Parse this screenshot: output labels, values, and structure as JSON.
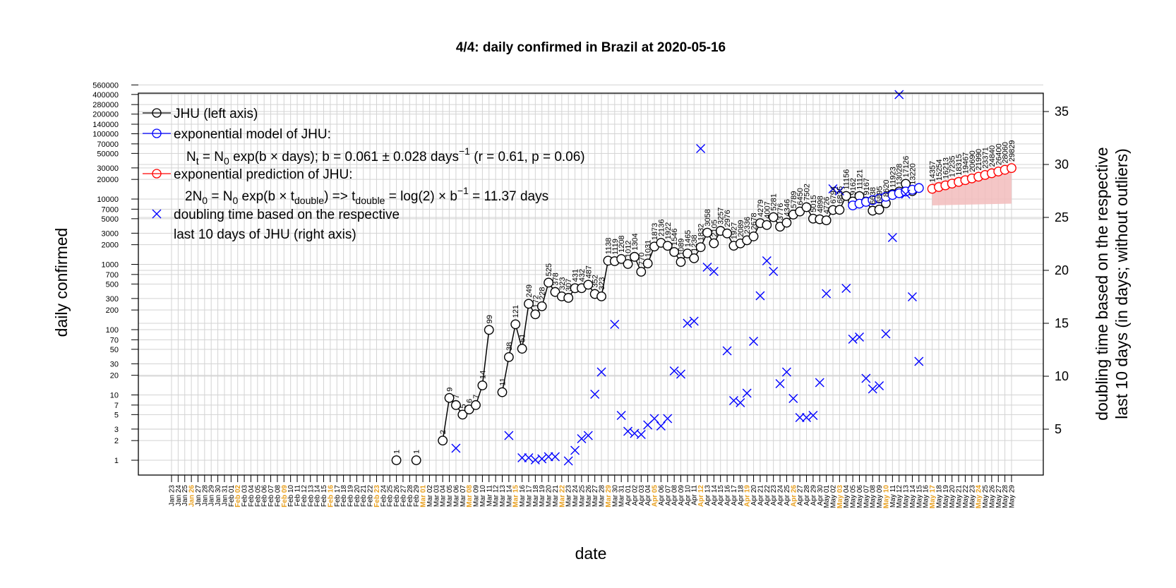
{
  "chart_data": {
    "type": "line",
    "title": "4/4: daily confirmed in Brazil at 2020-05-16",
    "xlabel": "date",
    "ylabel": "daily confirmed",
    "ylabel_right_line1": "doubling time based on the respective",
    "ylabel_right_line2": "last 10 days (in days; without outliers)",
    "x_start": "2020-01-23",
    "x_end": "2020-05-29",
    "y_scale": "log",
    "yticks_left": [
      1,
      2,
      3,
      5,
      7,
      10,
      20,
      30,
      50,
      70,
      100,
      200,
      300,
      500,
      700,
      1000,
      2000,
      3000,
      5000,
      7000,
      10000,
      20000,
      30000,
      50000,
      70000,
      100000,
      140000,
      200000,
      280000,
      400000,
      560000
    ],
    "ylim_right": [
      2.5,
      37.5
    ],
    "yticks_right": [
      5,
      10,
      15,
      20,
      25,
      30,
      35
    ],
    "grid": true,
    "legend_position": "top-left",
    "legend": {
      "jhu": "JHU (left axis)",
      "model": "exponential model of JHU:",
      "formula1_pre": "N",
      "formula1_sub1": "t",
      "formula1_mid": " = N",
      "formula1_sub2": "0",
      "formula1_post": " exp(b × days); b = 0.061 ± 0.028 days",
      "formula1_sup": "−1",
      "formula1_end": " (r = 0.61, p = 0.06)",
      "prediction": "exponential prediction of JHU:",
      "formula2_a": "2N",
      "formula2_sub1": "0",
      "formula2_b": " = N",
      "formula2_sub2": "0",
      "formula2_c": " exp(b × t",
      "formula2_sub3": "double",
      "formula2_d": ") => t",
      "formula2_sub4": "double",
      "formula2_e": " = log(2) × b",
      "formula2_sup": "−1",
      "formula2_f": " = 11.37 days",
      "doubling1": "doubling time based on the respective",
      "doubling2": "last 10 days of JHU (right axis)"
    },
    "colors": {
      "jhu": "#000000",
      "model": "#0000ff",
      "prediction": "#ff0000",
      "doubling": "#0000ff",
      "band": "#f2bcbc",
      "sunday_label": "#e8a020",
      "grid": "#d3d3d3"
    },
    "series": [
      {
        "name": "JHU (left axis)",
        "points": [
          [
            "2020-02-26",
            1
          ],
          [
            "2020-02-29",
            1
          ],
          [
            "2020-03-04",
            2
          ],
          [
            "2020-03-05",
            9
          ],
          [
            "2020-03-06",
            7
          ],
          [
            "2020-03-07",
            5
          ],
          [
            "2020-03-08",
            6
          ],
          [
            "2020-03-09",
            7
          ],
          [
            "2020-03-10",
            14
          ],
          [
            "2020-03-11",
            99
          ],
          [
            "2020-03-13",
            11
          ],
          [
            "2020-03-14",
            38
          ],
          [
            "2020-03-15",
            121
          ],
          [
            "2020-03-16",
            51
          ],
          [
            "2020-03-17",
            249
          ],
          [
            "2020-03-18",
            172
          ],
          [
            "2020-03-19",
            228
          ],
          [
            "2020-03-20",
            525
          ],
          [
            "2020-03-21",
            378
          ],
          [
            "2020-03-22",
            323
          ],
          [
            "2020-03-23",
            307
          ],
          [
            "2020-03-24",
            431
          ],
          [
            "2020-03-25",
            432
          ],
          [
            "2020-03-26",
            487
          ],
          [
            "2020-03-27",
            352
          ],
          [
            "2020-03-28",
            323
          ],
          [
            "2020-03-29",
            1138
          ],
          [
            "2020-03-30",
            1119
          ],
          [
            "2020-03-31",
            1208
          ],
          [
            "2020-04-01",
            1012
          ],
          [
            "2020-04-02",
            1304
          ],
          [
            "2020-04-03",
            770
          ],
          [
            "2020-04-04",
            1031
          ],
          [
            "2020-04-05",
            1873
          ],
          [
            "2020-04-06",
            2136
          ],
          [
            "2020-04-07",
            1922
          ],
          [
            "2020-04-08",
            1546
          ],
          [
            "2020-04-09",
            1089
          ],
          [
            "2020-04-10",
            1465
          ],
          [
            "2020-04-11",
            1238
          ],
          [
            "2020-04-12",
            1832
          ],
          [
            "2020-04-13",
            3058
          ],
          [
            "2020-04-14",
            2105
          ],
          [
            "2020-04-15",
            3257
          ],
          [
            "2020-04-16",
            2976
          ],
          [
            "2020-04-17",
            1927
          ],
          [
            "2020-04-18",
            2089
          ],
          [
            "2020-04-19",
            2336
          ],
          [
            "2020-04-20",
            2678
          ],
          [
            "2020-04-21",
            4279
          ],
          [
            "2020-04-22",
            4007
          ],
          [
            "2020-04-23",
            5281
          ],
          [
            "2020-04-24",
            3776
          ],
          [
            "2020-04-25",
            4346
          ],
          [
            "2020-04-26",
            5789
          ],
          [
            "2020-04-27",
            6450
          ],
          [
            "2020-04-28",
            7502
          ],
          [
            "2020-04-29",
            5015
          ],
          [
            "2020-04-30",
            4898
          ],
          [
            "2020-05-01",
            4726
          ],
          [
            "2020-05-02",
            6794
          ],
          [
            "2020-05-03",
            6835
          ],
          [
            "2020-05-04",
            11156
          ],
          [
            "2020-05-05",
            9162
          ],
          [
            "2020-05-06",
            11121
          ],
          [
            "2020-05-07",
            9167
          ],
          [
            "2020-05-08",
            6638
          ],
          [
            "2020-05-09",
            6895
          ],
          [
            "2020-05-10",
            8620
          ],
          [
            "2020-05-11",
            11923
          ],
          [
            "2020-05-12",
            13028
          ],
          [
            "2020-05-13",
            17126
          ],
          [
            "2020-05-14",
            13220
          ]
        ]
      },
      {
        "name": "exponential model of JHU:",
        "points": [
          [
            "2020-05-05",
            8000
          ],
          [
            "2020-05-06",
            8500
          ],
          [
            "2020-05-07",
            9050
          ],
          [
            "2020-05-08",
            9620
          ],
          [
            "2020-05-09",
            10200
          ],
          [
            "2020-05-10",
            10850
          ],
          [
            "2020-05-11",
            11550
          ],
          [
            "2020-05-12",
            12280
          ],
          [
            "2020-05-13",
            13050
          ],
          [
            "2020-05-14",
            13900
          ],
          [
            "2020-05-15",
            14770
          ]
        ]
      },
      {
        "name": "exponential prediction of JHU:",
        "points": [
          [
            "2020-05-17",
            14357
          ],
          [
            "2020-05-18",
            15254
          ],
          [
            "2020-05-19",
            16213
          ],
          [
            "2020-05-20",
            17235
          ],
          [
            "2020-05-21",
            18315
          ],
          [
            "2020-05-22",
            19467
          ],
          [
            "2020-05-23",
            20690
          ],
          [
            "2020-05-24",
            21990
          ],
          [
            "2020-05-25",
            23371
          ],
          [
            "2020-05-26",
            24840
          ],
          [
            "2020-05-27",
            26400
          ],
          [
            "2020-05-28",
            28060
          ],
          [
            "2020-05-29",
            29829
          ]
        ],
        "labels": [
          "14357",
          "15254",
          "16213",
          "17235",
          "18315",
          "19467",
          "20690",
          "21990",
          "23371",
          "24840",
          "26400",
          "28060",
          "29829"
        ]
      },
      {
        "name": "doubling time based on the respective last 10 days of JHU (right axis)",
        "axis": "right",
        "points": [
          [
            "2020-03-06",
            3.2
          ],
          [
            "2020-03-14",
            4.4
          ],
          [
            "2020-03-16",
            2.3
          ],
          [
            "2020-03-17",
            2.3
          ],
          [
            "2020-03-18",
            2.1
          ],
          [
            "2020-03-19",
            2.2
          ],
          [
            "2020-03-20",
            2.4
          ],
          [
            "2020-03-21",
            2.4
          ],
          [
            "2020-03-23",
            2.0
          ],
          [
            "2020-03-24",
            3.0
          ],
          [
            "2020-03-25",
            4.1
          ],
          [
            "2020-03-26",
            4.4
          ],
          [
            "2020-03-27",
            8.3
          ],
          [
            "2020-03-28",
            10.4
          ],
          [
            "2020-03-30",
            14.9
          ],
          [
            "2020-03-31",
            6.3
          ],
          [
            "2020-04-01",
            4.8
          ],
          [
            "2020-04-02",
            4.6
          ],
          [
            "2020-04-03",
            4.5
          ],
          [
            "2020-04-04",
            5.4
          ],
          [
            "2020-04-05",
            6.0
          ],
          [
            "2020-04-06",
            5.3
          ],
          [
            "2020-04-07",
            6.0
          ],
          [
            "2020-04-08",
            10.5
          ],
          [
            "2020-04-09",
            10.2
          ],
          [
            "2020-04-10",
            15.0
          ],
          [
            "2020-04-11",
            15.2
          ],
          [
            "2020-04-12",
            31.5
          ],
          [
            "2020-04-13",
            20.3
          ],
          [
            "2020-04-14",
            19.9
          ],
          [
            "2020-04-16",
            12.4
          ],
          [
            "2020-04-17",
            7.7
          ],
          [
            "2020-04-18",
            7.5
          ],
          [
            "2020-04-19",
            8.4
          ],
          [
            "2020-04-20",
            13.3
          ],
          [
            "2020-04-21",
            17.6
          ],
          [
            "2020-04-22",
            20.9
          ],
          [
            "2020-04-23",
            19.9
          ],
          [
            "2020-04-24",
            9.3
          ],
          [
            "2020-04-25",
            10.4
          ],
          [
            "2020-04-26",
            7.9
          ],
          [
            "2020-04-27",
            6.1
          ],
          [
            "2020-04-28",
            6.1
          ],
          [
            "2020-04-29",
            6.3
          ],
          [
            "2020-04-30",
            9.4
          ],
          [
            "2020-05-01",
            17.8
          ],
          [
            "2020-05-02",
            27.7
          ],
          [
            "2020-05-03",
            27.5
          ],
          [
            "2020-05-04",
            18.3
          ],
          [
            "2020-05-05",
            13.5
          ],
          [
            "2020-05-06",
            13.7
          ],
          [
            "2020-05-07",
            9.8
          ],
          [
            "2020-05-08",
            8.8
          ],
          [
            "2020-05-09",
            9.1
          ],
          [
            "2020-05-10",
            14.0
          ],
          [
            "2020-05-11",
            23.1
          ],
          [
            "2020-05-12",
            36.6
          ],
          [
            "2020-05-13",
            27.2
          ],
          [
            "2020-05-14",
            17.5
          ],
          [
            "2020-05-15",
            11.4
          ]
        ]
      }
    ],
    "prediction_band": {
      "dates": [
        "2020-05-17",
        "2020-05-29"
      ],
      "lower": [
        8000,
        8500
      ],
      "upper": [
        17500,
        33000
      ]
    }
  }
}
